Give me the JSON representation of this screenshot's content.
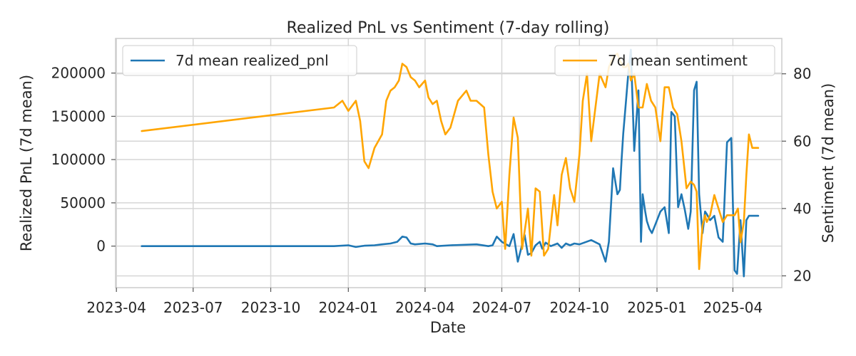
{
  "chart_data": {
    "type": "line",
    "title": "Realized PnL vs Sentiment (7-day rolling)",
    "xlabel": "Date",
    "ylabel_left": "Realized PnL (7d mean)",
    "ylabel_right": "Sentiment (7d mean)",
    "x_ticks": [
      "2023-04",
      "2023-07",
      "2023-10",
      "2024-01",
      "2024-04",
      "2024-07",
      "2024-10",
      "2025-01",
      "2025-04"
    ],
    "y_left_ticks": [
      "0",
      "50000",
      "100000",
      "150000",
      "200000"
    ],
    "y_left_tick_values": [
      0,
      50000,
      100000,
      150000,
      200000
    ],
    "y_right_ticks": [
      "20",
      "40",
      "60",
      "80"
    ],
    "y_right_tick_values": [
      20,
      40,
      60,
      80
    ],
    "y_left_range": [
      -48000,
      240000
    ],
    "y_right_range": [
      16.5,
      90.5
    ],
    "x_range": [
      "2023-03-31",
      "2025-05-29"
    ],
    "grid": true,
    "legends": [
      {
        "label": "7d mean realized_pnl",
        "placement": "upper-left"
      },
      {
        "label": "7d mean sentiment",
        "placement": "upper-right"
      }
    ],
    "colors": {
      "realized_pnl": "#1f77b4",
      "sentiment": "#ffa500"
    },
    "series": [
      {
        "name": "7d mean realized_pnl",
        "axis": "left",
        "x": [
          "2023-05-01",
          "2023-08-01",
          "2023-11-01",
          "2023-12-15",
          "2024-01-01",
          "2024-01-10",
          "2024-01-20",
          "2024-02-01",
          "2024-02-10",
          "2024-02-20",
          "2024-02-28",
          "2024-03-05",
          "2024-03-10",
          "2024-03-15",
          "2024-03-20",
          "2024-04-01",
          "2024-04-10",
          "2024-04-15",
          "2024-05-01",
          "2024-06-01",
          "2024-06-15",
          "2024-06-20",
          "2024-06-25",
          "2024-07-01",
          "2024-07-10",
          "2024-07-15",
          "2024-07-20",
          "2024-07-28",
          "2024-08-01",
          "2024-08-05",
          "2024-08-10",
          "2024-08-15",
          "2024-08-18",
          "2024-08-22",
          "2024-08-28",
          "2024-09-05",
          "2024-09-10",
          "2024-09-15",
          "2024-09-20",
          "2024-09-25",
          "2024-10-01",
          "2024-10-15",
          "2024-10-25",
          "2024-11-01",
          "2024-11-05",
          "2024-11-10",
          "2024-11-15",
          "2024-11-18",
          "2024-11-20",
          "2024-11-22",
          "2024-11-25",
          "2024-11-28",
          "2024-12-01",
          "2024-12-05",
          "2024-12-10",
          "2024-12-13",
          "2024-12-15",
          "2024-12-18",
          "2024-12-20",
          "2024-12-23",
          "2024-12-26",
          "2024-12-30",
          "2025-01-05",
          "2025-01-10",
          "2025-01-15",
          "2025-01-18",
          "2025-01-22",
          "2025-01-26",
          "2025-01-30",
          "2025-02-03",
          "2025-02-07",
          "2025-02-10",
          "2025-02-14",
          "2025-02-17",
          "2025-02-20",
          "2025-02-24",
          "2025-02-27",
          "2025-03-01",
          "2025-03-05",
          "2025-03-10",
          "2025-03-15",
          "2025-03-20",
          "2025-03-25",
          "2025-03-30",
          "2025-04-03",
          "2025-04-06",
          "2025-04-10",
          "2025-04-14",
          "2025-04-17",
          "2025-04-20",
          "2025-04-22",
          "2025-04-25",
          "2025-04-28",
          "2025-05-01"
        ],
        "values": [
          0,
          0,
          0,
          0,
          1000,
          -1000,
          500,
          1000,
          2000,
          3000,
          5000,
          11000,
          10000,
          3000,
          2000,
          3000,
          2000,
          0,
          1000,
          2000,
          0,
          1000,
          11000,
          5000,
          0,
          14000,
          -18000,
          13000,
          -10000,
          -8000,
          1000,
          5000,
          -3000,
          4000,
          0,
          3000,
          -2000,
          3000,
          1000,
          3000,
          2000,
          7000,
          2000,
          -18000,
          5000,
          90000,
          60000,
          65000,
          100000,
          130000,
          165000,
          200000,
          227000,
          110000,
          180000,
          5000,
          60000,
          40000,
          29000,
          20000,
          15000,
          25000,
          40000,
          45000,
          15000,
          155000,
          150000,
          45000,
          60000,
          42000,
          20000,
          40000,
          180000,
          190000,
          60000,
          15000,
          40000,
          37000,
          30000,
          35000,
          10000,
          5000,
          120000,
          125000,
          -28000,
          -32000,
          30000,
          -35000,
          30000,
          35000,
          35000,
          35000,
          35000,
          35000
        ]
      },
      {
        "name": "7d mean sentiment",
        "axis": "right",
        "x": [
          "2023-05-01",
          "2023-12-15",
          "2023-12-25",
          "2024-01-01",
          "2024-01-10",
          "2024-01-15",
          "2024-01-20",
          "2024-01-25",
          "2024-02-01",
          "2024-02-10",
          "2024-02-15",
          "2024-02-20",
          "2024-02-25",
          "2024-03-01",
          "2024-03-05",
          "2024-03-10",
          "2024-03-15",
          "2024-03-20",
          "2024-03-25",
          "2024-04-01",
          "2024-04-05",
          "2024-04-10",
          "2024-04-15",
          "2024-04-20",
          "2024-04-25",
          "2024-05-01",
          "2024-05-10",
          "2024-05-20",
          "2024-05-25",
          "2024-06-01",
          "2024-06-10",
          "2024-06-15",
          "2024-06-20",
          "2024-06-25",
          "2024-07-01",
          "2024-07-05",
          "2024-07-10",
          "2024-07-15",
          "2024-07-20",
          "2024-07-25",
          "2024-08-01",
          "2024-08-05",
          "2024-08-10",
          "2024-08-15",
          "2024-08-20",
          "2024-08-25",
          "2024-09-01",
          "2024-09-05",
          "2024-09-10",
          "2024-09-15",
          "2024-09-20",
          "2024-09-25",
          "2024-10-01",
          "2024-10-05",
          "2024-10-10",
          "2024-10-15",
          "2024-10-20",
          "2024-10-25",
          "2024-11-01",
          "2024-11-05",
          "2024-11-10",
          "2024-11-15",
          "2024-11-18",
          "2024-11-22",
          "2024-11-25",
          "2024-11-28",
          "2024-12-01",
          "2024-12-05",
          "2024-12-10",
          "2024-12-15",
          "2024-12-20",
          "2024-12-25",
          "2024-12-30",
          "2025-01-05",
          "2025-01-10",
          "2025-01-15",
          "2025-01-20",
          "2025-01-25",
          "2025-01-30",
          "2025-02-05",
          "2025-02-10",
          "2025-02-14",
          "2025-02-17",
          "2025-02-20",
          "2025-02-24",
          "2025-02-27",
          "2025-03-01",
          "2025-03-05",
          "2025-03-10",
          "2025-03-15",
          "2025-03-20",
          "2025-03-25",
          "2025-03-30",
          "2025-04-03",
          "2025-04-07",
          "2025-04-10",
          "2025-04-14",
          "2025-04-17",
          "2025-04-20",
          "2025-04-24",
          "2025-04-27",
          "2025-05-01"
        ],
        "values": [
          63,
          70,
          72,
          69,
          72,
          66,
          54,
          52,
          58,
          62,
          72,
          75,
          76,
          78,
          83,
          82,
          79,
          78,
          76,
          78,
          73,
          71,
          72,
          66,
          62,
          64,
          72,
          75,
          72,
          72,
          70,
          56,
          45,
          40,
          42,
          28,
          50,
          67,
          61,
          28,
          40,
          26,
          46,
          45,
          26,
          28,
          44,
          35,
          50,
          55,
          46,
          42,
          56,
          72,
          80,
          60,
          70,
          80,
          76,
          82,
          85,
          86,
          84,
          82,
          82,
          83,
          78,
          80,
          70,
          70,
          77,
          72,
          70,
          60,
          76,
          76,
          70,
          68,
          60,
          46,
          48,
          47,
          45,
          22,
          35,
          38,
          36,
          38,
          44,
          40,
          36,
          38,
          38,
          38,
          40,
          30,
          36,
          50,
          62,
          58,
          58,
          58
        ]
      }
    ]
  }
}
